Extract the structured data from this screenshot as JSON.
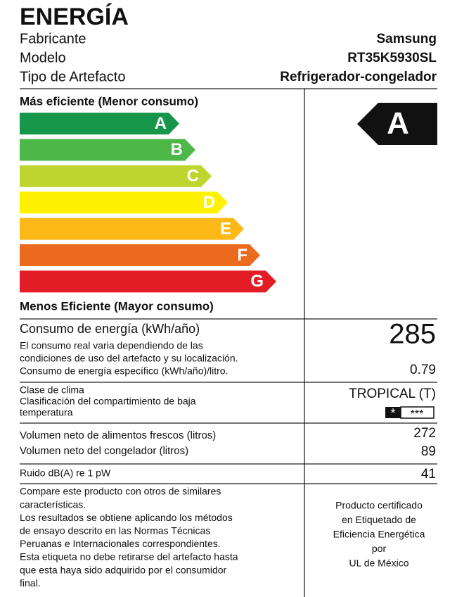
{
  "header": {
    "title": "ENERGÍA",
    "rows": [
      [
        "Fabricante",
        "Samsung"
      ],
      [
        "Modelo",
        "RT35K5930SL"
      ],
      [
        "Tipo de Artefacto",
        "Refrigerador-congelador"
      ]
    ]
  },
  "scale": {
    "top_label": "Más eficiente (Menor consumo)",
    "bottom_label": "Menos Eficiente (Mayor consumo)",
    "bars": [
      {
        "letter": "A",
        "color": "#17964a"
      },
      {
        "letter": "B",
        "color": "#4db748"
      },
      {
        "letter": "C",
        "color": "#bfd52f"
      },
      {
        "letter": "D",
        "color": "#fff100"
      },
      {
        "letter": "E",
        "color": "#fbb816"
      },
      {
        "letter": "F",
        "color": "#ec6a1d"
      },
      {
        "letter": "G",
        "color": "#e31d25"
      }
    ],
    "rating": "A"
  },
  "consumption": {
    "label": "Consumo de energía (kWh/año)",
    "value": "285",
    "notes": [
      "El consumo real varia dependiendo de las",
      "condiciones de uso del artefacto y su localización.",
      "Consumo de energía específico (kWh/año)/litro."
    ],
    "specific": "0.79"
  },
  "climate": {
    "lines": [
      "Clase de clima",
      "Clasificación del compartimiento de baja",
      "temperatura"
    ],
    "value": "TROPICAL (T)",
    "stars": [
      "*",
      "***"
    ]
  },
  "volumes": [
    [
      "Volumen neto de alimentos frescos (litros)",
      "272"
    ],
    [
      "Volumen neto del congelador (litros)",
      "89"
    ]
  ],
  "noise": [
    "Ruido dB(A) re 1 pW",
    "41"
  ],
  "footer": {
    "left": [
      "Compare este producto con otros de similares",
      "características.",
      "Los resultados se obtiene aplicando los métodos",
      "de ensayo descrito en las Normas Técnicas",
      "Peruanas e Internacionales correspondientes.",
      "Esta etiqueta no debe retirarse del artefacto hasta",
      "que esta haya sido adquirido por el consumidor",
      "final."
    ],
    "right": [
      "Producto certificado",
      "en Etiquetado de",
      "Eficiencia Energética",
      "por",
      "UL de México"
    ]
  }
}
